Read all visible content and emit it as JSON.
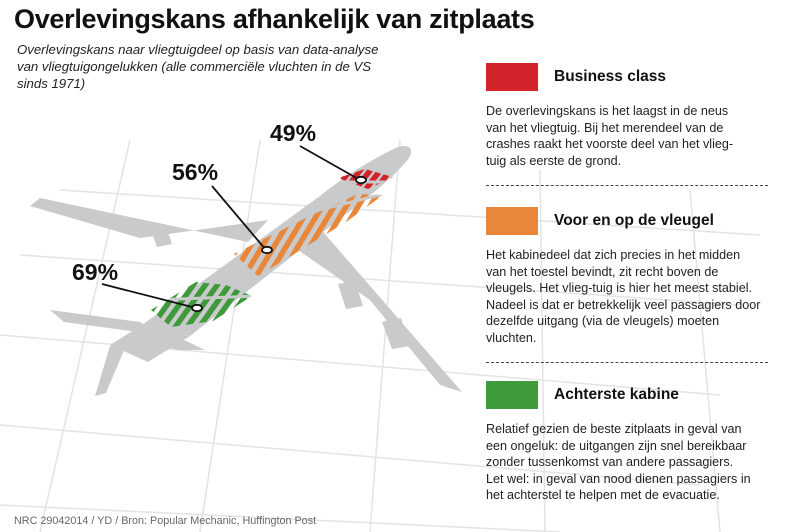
{
  "title": "Overlevingskans afhankelijk van zitplaats",
  "subtitle_lines": [
    "Overlevingskans naar vliegtuigdeel op basis van data-analyse",
    "van vliegtuigongelukken (alle commerciële  vluchten in de VS",
    "sinds 1971)"
  ],
  "sections": [
    {
      "id": "business",
      "percentage": "49%",
      "color": "#d2232a",
      "legend_title": "Business class",
      "text_lines": [
        "De overlevingskans is het laagst in de neus",
        "van het  vliegtuig. Bij het merendeel van de",
        "crashes raakt het voorste deel van het vlieg-",
        "tuig als eerste de grond."
      ]
    },
    {
      "id": "wing",
      "percentage": "56%",
      "color": "#e8873a",
      "legend_title": "Voor en op de vleugel",
      "text_lines": [
        "Het kabinedeel dat zich precies in het midden",
        "van het toestel bevindt, zit recht boven de",
        "vleugels. Het vlieg-tuig is hier het meest stabiel.",
        "Nadeel is dat er betrekkelijk veel passagiers door",
        "dezelfde uitgang (via de vleugels) moeten",
        " vluchten."
      ]
    },
    {
      "id": "rear",
      "percentage": "69%",
      "color": "#3f9a3b",
      "legend_title": "Achterste kabine",
      "text_lines": [
        "Relatief gezien de beste zitplaats in geval van",
        "een ongeluk: de uitgangen zijn snel bereikbaar",
        "zonder tussenkomst van andere passagiers.",
        "Let wel: in geval van nood dienen passagiers in",
        "het achterstel te helpen met de evacuatie."
      ]
    }
  ],
  "source": "NRC 29042014 / YD / Bron: Popular Mechanic, Huffington Post",
  "colors": {
    "plane": "#c9cacb",
    "grid": "#e3e3e3",
    "leader": "#111111"
  }
}
